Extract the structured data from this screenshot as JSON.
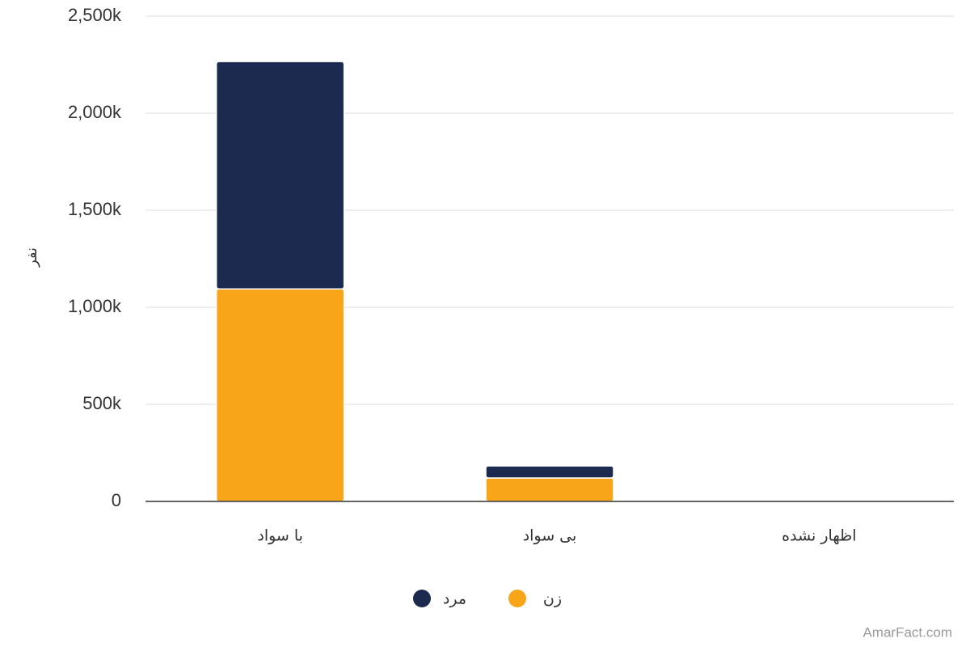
{
  "chart_data": {
    "type": "stacked-bar",
    "y_label": "نفر",
    "categories": [
      "با سواد",
      "بی سواد",
      "اظهار نشده"
    ],
    "series": [
      {
        "name": "زن",
        "color": "#f9a51a",
        "values": [
          1095000,
          121000,
          0
        ]
      },
      {
        "name": "مرد",
        "color": "#1b2a4e",
        "values": [
          1171000,
          62000,
          0
        ]
      }
    ],
    "ylim": [
      0,
      2500000
    ],
    "yticks": [
      0,
      {
        "value": 500000,
        "label": "500k"
      },
      {
        "value": 1000000,
        "label": "1,000k"
      },
      {
        "value": 1500000,
        "label": "1,500k"
      },
      {
        "value": 2000000,
        "label": "2,000k"
      },
      {
        "value": 2500000,
        "label": "2,500k"
      }
    ],
    "grid": true,
    "watermark": "AmarFact.com"
  }
}
